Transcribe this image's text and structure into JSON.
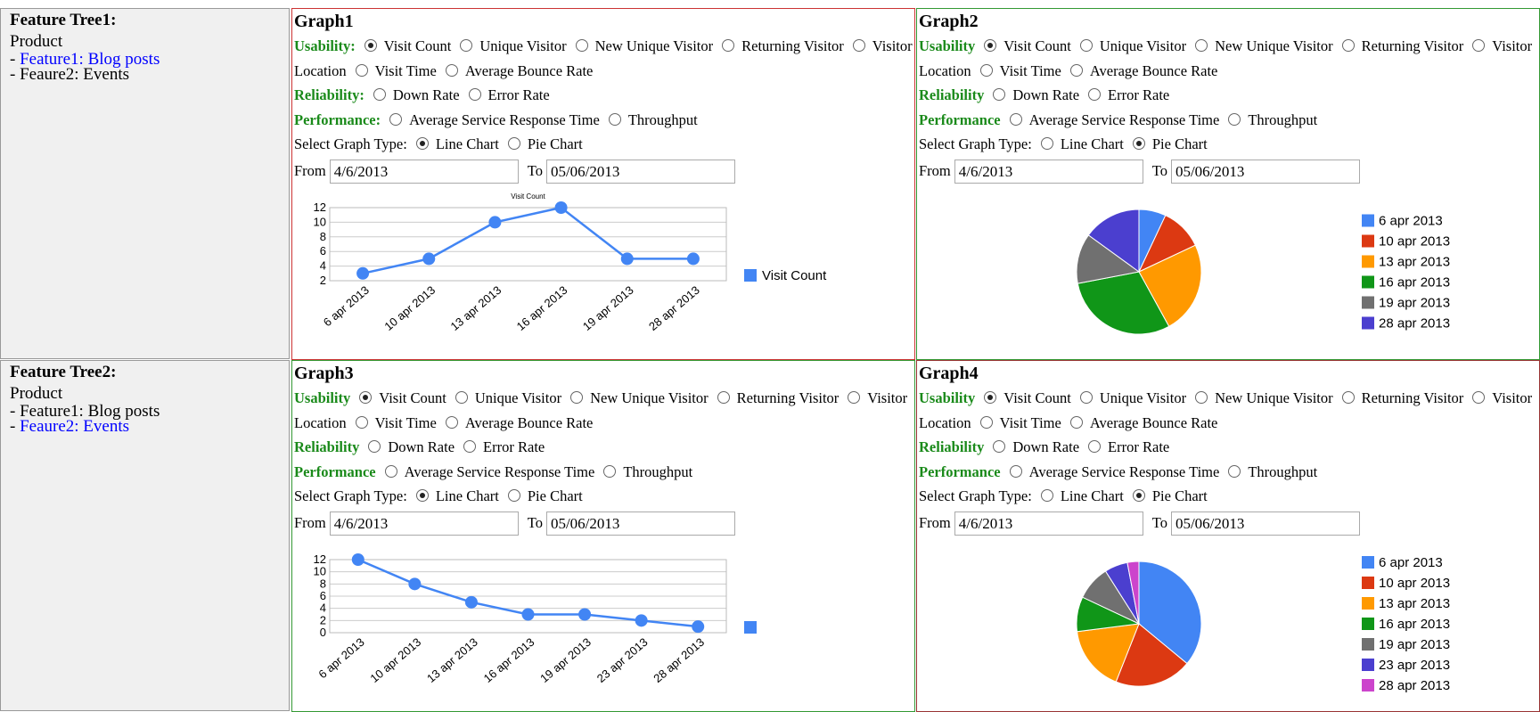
{
  "sidebar": [
    {
      "title": "Feature Tree1:",
      "product": "Product",
      "items": [
        {
          "bullet": "-",
          "label": "Feature1: Blog posts",
          "link": true
        },
        {
          "bullet": "-",
          "label": "Feaure2: Events",
          "link": false
        }
      ]
    },
    {
      "title": "Feature Tree2:",
      "product": "Product",
      "items": [
        {
          "bullet": "-",
          "label": "Feature1: Blog posts",
          "link": false
        },
        {
          "bullet": "-",
          "label": "Feaure2: Events",
          "link": true
        }
      ]
    }
  ],
  "panels": [
    {
      "title": "Graph1",
      "groups": [
        {
          "label": "Usability:",
          "options": [
            "Visit Count",
            "Unique Visitor",
            "New Unique Visitor",
            "Returning Visitor",
            "Visitor Location",
            "Visit Time",
            "Average Bounce Rate"
          ],
          "selected": 0
        },
        {
          "label": "Reliability:",
          "options": [
            "Down Rate",
            "Error Rate"
          ],
          "selected": null
        },
        {
          "label": "Performance:",
          "options": [
            "Average Service Response Time",
            "Throughput"
          ],
          "selected": null
        }
      ],
      "graph_type": {
        "label": "Select Graph Type:",
        "options": [
          "Line Chart",
          "Pie Chart"
        ],
        "selected": 0
      },
      "from": {
        "label": "From",
        "value": "4/6/2013"
      },
      "to": {
        "label": "To",
        "value": "05/06/2013"
      },
      "chart": {
        "type": "line",
        "title": "Visit Count",
        "categories": [
          "6 apr 2013",
          "10 apr 2013",
          "13 apr 2013",
          "16 apr 2013",
          "19 apr 2013",
          "28 apr 2013"
        ],
        "series": [
          {
            "name": "Visit Count",
            "color": "#4285f4",
            "values": [
              3,
              5,
              10,
              12,
              5,
              5
            ]
          }
        ],
        "ylim": [
          2,
          12
        ],
        "yticks": [
          2,
          4,
          6,
          8,
          10,
          12
        ],
        "grid": true
      }
    },
    {
      "title": "Graph2",
      "groups": [
        {
          "label": "Usability",
          "options": [
            "Visit Count",
            "Unique Visitor",
            "New Unique Visitor",
            "Returning Visitor",
            "Visitor Location",
            "Visit Time",
            "Average Bounce Rate"
          ],
          "selected": 0
        },
        {
          "label": "Reliability",
          "options": [
            "Down Rate",
            "Error Rate"
          ],
          "selected": null
        },
        {
          "label": "Performance",
          "options": [
            "Average Service Response Time",
            "Throughput"
          ],
          "selected": null
        }
      ],
      "graph_type": {
        "label": "Select Graph Type:",
        "options": [
          "Line Chart",
          "Pie Chart"
        ],
        "selected": 1
      },
      "from": {
        "label": "From",
        "value": "4/6/2013"
      },
      "to": {
        "label": "To",
        "value": "05/06/2013"
      },
      "chart": {
        "type": "pie",
        "categories": [
          "6 apr 2013",
          "10 apr 2013",
          "13 apr 2013",
          "16 apr 2013",
          "19 apr 2013",
          "28 apr 2013"
        ],
        "values": [
          7,
          11,
          24,
          30,
          13,
          15
        ],
        "colors": [
          "#4285f4",
          "#dc3912",
          "#ff9900",
          "#109618",
          "#707070",
          "#4b3fcf"
        ]
      }
    },
    {
      "title": "Graph3",
      "groups": [
        {
          "label": "Usability",
          "options": [
            "Visit Count",
            "Unique Visitor",
            "New Unique Visitor",
            "Returning Visitor",
            "Visitor Location",
            "Visit Time",
            "Average Bounce Rate"
          ],
          "selected": 0
        },
        {
          "label": "Reliability",
          "options": [
            "Down Rate",
            "Error Rate"
          ],
          "selected": null
        },
        {
          "label": "Performance",
          "options": [
            "Average Service Response Time",
            "Throughput"
          ],
          "selected": null
        }
      ],
      "graph_type": {
        "label": "Select Graph Type:",
        "options": [
          "Line Chart",
          "Pie Chart"
        ],
        "selected": 0
      },
      "from": {
        "label": "From",
        "value": "4/6/2013"
      },
      "to": {
        "label": "To",
        "value": "05/06/2013"
      },
      "chart": {
        "type": "line",
        "categories": [
          "6 apr 2013",
          "10 apr 2013",
          "13 apr 2013",
          "16 apr 2013",
          "19 apr 2013",
          "23 apr 2013",
          "28 apr 2013"
        ],
        "series": [
          {
            "color": "#4285f4",
            "values": [
              12,
              8,
              5,
              3,
              3,
              2,
              1
            ]
          }
        ],
        "ylim": [
          0,
          12
        ],
        "yticks": [
          0,
          2,
          4,
          6,
          8,
          10,
          12
        ],
        "grid": true
      }
    },
    {
      "title": "Graph4",
      "groups": [
        {
          "label": "Usability",
          "options": [
            "Visit Count",
            "Unique Visitor",
            "New Unique Visitor",
            "Returning Visitor",
            "Visitor Location",
            "Visit Time",
            "Average Bounce Rate"
          ],
          "selected": 0
        },
        {
          "label": "Reliability",
          "options": [
            "Down Rate",
            "Error Rate"
          ],
          "selected": null
        },
        {
          "label": "Performance",
          "options": [
            "Average Service Response Time",
            "Throughput"
          ],
          "selected": null
        }
      ],
      "graph_type": {
        "label": "Select Graph Type:",
        "options": [
          "Line Chart",
          "Pie Chart"
        ],
        "selected": 1
      },
      "from": {
        "label": "From",
        "value": "4/6/2013"
      },
      "to": {
        "label": "To",
        "value": "05/06/2013"
      },
      "chart": {
        "type": "pie",
        "categories": [
          "6 apr 2013",
          "10 apr 2013",
          "13 apr 2013",
          "16 apr 2013",
          "19 apr 2013",
          "23 apr 2013",
          "28 apr 2013"
        ],
        "values": [
          36,
          20,
          17,
          9,
          9,
          6,
          3
        ],
        "colors": [
          "#4285f4",
          "#dc3912",
          "#ff9900",
          "#109618",
          "#707070",
          "#4b3fcf",
          "#cc44cc"
        ]
      }
    }
  ]
}
